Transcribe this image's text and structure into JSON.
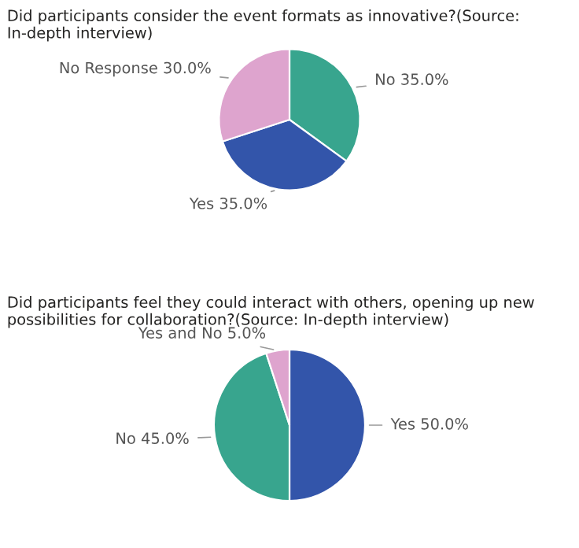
{
  "chart_data": [
    {
      "type": "pie",
      "title": "Did participants consider the event formats as innovative?(Source: In-depth interview)",
      "categories": [
        "No",
        "Yes",
        "No Response"
      ],
      "values": [
        35.0,
        35.0,
        30.0
      ],
      "colors": [
        "#38a58e",
        "#3355aa",
        "#dea4ce"
      ],
      "value_labels": [
        "35.0%",
        "35.0%",
        "30.0%"
      ]
    },
    {
      "type": "pie",
      "title": "Did participants feel they could interact with others, opening up new possibilities for collaboration?(Source: In-depth interview)",
      "categories": [
        "Yes",
        "No",
        "Yes and No"
      ],
      "values": [
        50.0,
        45.0,
        5.0
      ],
      "colors": [
        "#3355aa",
        "#38a58e",
        "#dea4ce"
      ],
      "value_labels": [
        "50.0%",
        "45.0%",
        "5.0%"
      ]
    }
  ]
}
